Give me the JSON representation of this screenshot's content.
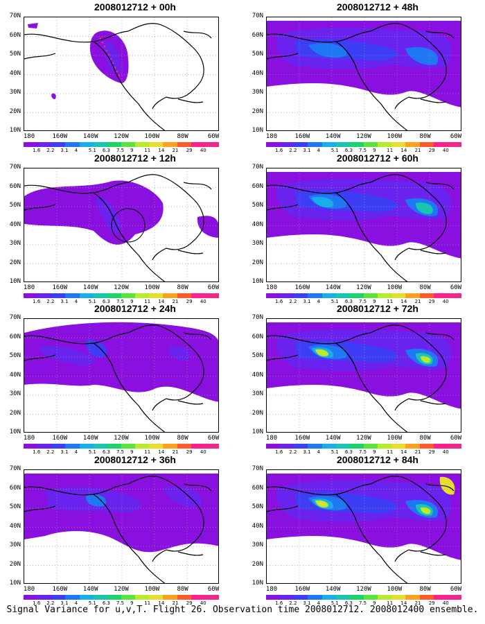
{
  "footer": "Signal Variance for u,v,T. Flight 26. Observation time 2008012712. 2008012400 ensemble.",
  "lat_labels": [
    "70N",
    "60N",
    "50N",
    "40N",
    "30N",
    "20N",
    "10N"
  ],
  "lon_labels": [
    "180",
    "160W",
    "140W",
    "120W",
    "100W",
    "80W",
    "60W"
  ],
  "colorbar": {
    "labels": [
      "1.6",
      "2.2",
      "3.1",
      "4",
      "5.1",
      "6.3",
      "7.5",
      "9",
      "11",
      "14",
      "21",
      "29",
      "40"
    ],
    "colors": [
      "#8a10e0",
      "#6a22ee",
      "#3d3df5",
      "#1e78f4",
      "#17aee9",
      "#16c6b0",
      "#1bd46a",
      "#5ce33c",
      "#b6ec2c",
      "#e6de2e",
      "#ffa11f",
      "#ff5a2c",
      "#ff1e8c",
      "#f0288a"
    ]
  },
  "panels": [
    {
      "title": "2008012712 + 00h",
      "col": 0,
      "row": 0,
      "level": 0
    },
    {
      "title": "2008012712 + 12h",
      "col": 0,
      "row": 1,
      "level": 1
    },
    {
      "title": "2008012712 + 24h",
      "col": 0,
      "row": 2,
      "level": 2
    },
    {
      "title": "2008012712 + 36h",
      "col": 0,
      "row": 3,
      "level": 3
    },
    {
      "title": "2008012712 + 48h",
      "col": 1,
      "row": 0,
      "level": 4
    },
    {
      "title": "2008012712 + 60h",
      "col": 1,
      "row": 1,
      "level": 5
    },
    {
      "title": "2008012712 + 72h",
      "col": 1,
      "row": 2,
      "level": 6
    },
    {
      "title": "2008012712 + 84h",
      "col": 1,
      "row": 3,
      "level": 7
    }
  ]
}
